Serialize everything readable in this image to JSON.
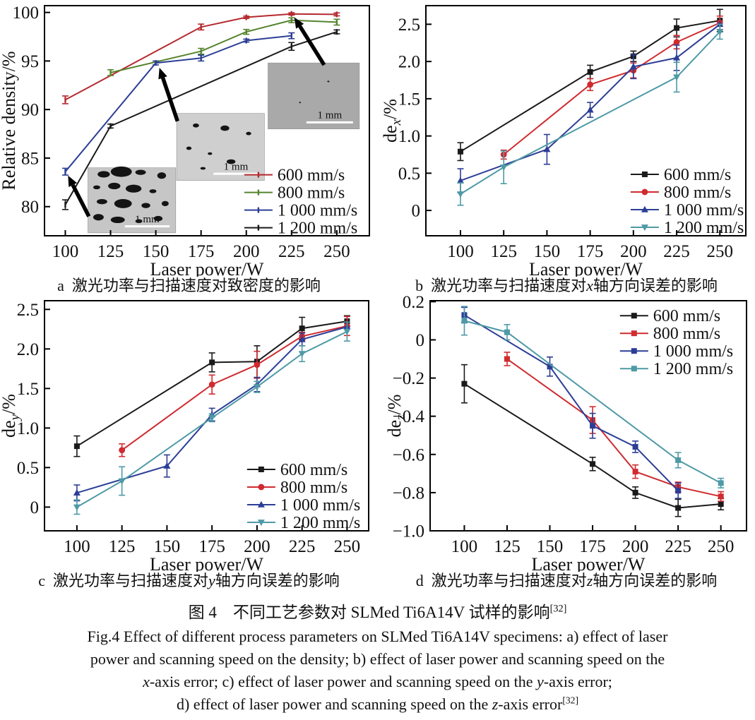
{
  "figure_caption": {
    "cn": [
      {
        "t": "图 4　不同工艺参数对 SLMed Ti6A14V 试样的影响"
      },
      {
        "t": "[32]",
        "sup": true
      }
    ],
    "en_lines": [
      [
        {
          "t": "Fig.4 Effect of different process parameters on SLMed Ti6A14V specimens: a) effect of laser"
        }
      ],
      [
        {
          "t": "power and scanning speed on the density; b) effect of laser power and scanning speed on the"
        }
      ],
      [
        {
          "t": "x",
          "i": true
        },
        {
          "t": "-axis error; c) effect of laser power and scanning speed on the "
        },
        {
          "t": "y",
          "i": true
        },
        {
          "t": "-axis error;"
        }
      ],
      [
        {
          "t": "d) effect of laser power and scanning speed on the "
        },
        {
          "t": "z",
          "i": true
        },
        {
          "t": "-axis error"
        },
        {
          "t": "[32]",
          "sup": true
        }
      ]
    ]
  },
  "chart_data": [
    {
      "id": "a",
      "type": "line",
      "subcaption": [
        {
          "t": "a  激光功率与扫描速度对致密度的影响"
        }
      ],
      "xlabel": "Laser power/W",
      "ylabel": {
        "pre": "Relative density/%",
        "sub": "",
        "post": ""
      },
      "xlim": [
        88.5,
        268
      ],
      "xticks": [
        100,
        125,
        150,
        175,
        200,
        225,
        250
      ],
      "ylim": [
        77.0,
        100.7
      ],
      "yticks": [
        {
          "v": 80,
          "l": "80"
        },
        {
          "v": 85,
          "l": "85"
        },
        {
          "v": 90,
          "l": "90"
        },
        {
          "v": 95,
          "l": "95"
        },
        {
          "v": 100,
          "l": "100"
        }
      ],
      "grid": false,
      "legend": {
        "fx": 0.615,
        "fy": 0.735
      },
      "series": [
        {
          "name": "600 mm/s",
          "color": "#b5292e",
          "marker": "none",
          "points": [
            [
              100,
              91.0,
              0.4
            ],
            [
              175,
              98.5,
              0.3
            ],
            [
              200,
              99.5,
              0.12
            ],
            [
              225,
              99.85,
              0.12
            ],
            [
              250,
              99.8,
              0.15
            ]
          ]
        },
        {
          "name": "800 mm/s",
          "color": "#56842e",
          "marker": "none",
          "points": [
            [
              125,
              93.8,
              0.3
            ],
            [
              175,
              96.0,
              0.3
            ],
            [
              200,
              98.0,
              0.25
            ],
            [
              225,
              99.2,
              0.25
            ],
            [
              250,
              99.0,
              0.3
            ]
          ]
        },
        {
          "name": "1 000 mm/s",
          "color": "#2c3e96",
          "marker": "none",
          "points": [
            [
              100,
              83.6,
              0.35
            ],
            [
              150,
              94.8,
              0.2
            ],
            [
              175,
              95.3,
              0.3
            ],
            [
              200,
              97.1,
              0.15
            ],
            [
              225,
              97.6,
              0.3
            ]
          ]
        },
        {
          "name": "1 200 mm/s",
          "color": "#1a1a1a",
          "marker": "none",
          "points": [
            [
              100,
              80.2,
              0.5
            ],
            [
              125,
              88.3,
              0.2
            ],
            [
              225,
              96.5,
              0.4
            ],
            [
              250,
              98.0,
              0.2
            ]
          ]
        }
      ],
      "insets": [
        {
          "x": [
            112.5,
            161
          ],
          "y": [
            77.3,
            84.0
          ],
          "fill": "#c6c6c6",
          "label": "1 mm",
          "label_color": "#3a3a3a",
          "bar_color": "#ffffff",
          "pores": [
            [
              0.18,
              0.1,
              0.07,
              0.05
            ],
            [
              0.38,
              0.06,
              0.12,
              0.08
            ],
            [
              0.6,
              0.07,
              0.06,
              0.04
            ],
            [
              0.84,
              0.12,
              0.05,
              0.05
            ],
            [
              0.1,
              0.3,
              0.04,
              0.03
            ],
            [
              0.3,
              0.28,
              0.07,
              0.05
            ],
            [
              0.52,
              0.32,
              0.09,
              0.06
            ],
            [
              0.74,
              0.36,
              0.04,
              0.03
            ],
            [
              0.16,
              0.52,
              0.06,
              0.04
            ],
            [
              0.4,
              0.55,
              0.1,
              0.07
            ],
            [
              0.66,
              0.58,
              0.05,
              0.04
            ],
            [
              0.88,
              0.55,
              0.04,
              0.04
            ],
            [
              0.12,
              0.76,
              0.06,
              0.05
            ],
            [
              0.34,
              0.8,
              0.08,
              0.05
            ],
            [
              0.58,
              0.82,
              0.04,
              0.03
            ],
            [
              0.8,
              0.78,
              0.05,
              0.04
            ]
          ]
        },
        {
          "x": [
            161.5,
            210
          ],
          "y": [
            82.7,
            89.6
          ],
          "fill": "#cfcfcf",
          "label": "1 mm",
          "label_color": "#ffffff",
          "bar_color": "#ffffff",
          "pores": [
            [
              0.22,
              0.18,
              0.035,
              0.03
            ],
            [
              0.55,
              0.22,
              0.05,
              0.04
            ],
            [
              0.82,
              0.3,
              0.03,
              0.025
            ],
            [
              0.14,
              0.52,
              0.03,
              0.025
            ],
            [
              0.38,
              0.6,
              0.025,
              0.02
            ],
            [
              0.62,
              0.72,
              0.05,
              0.035
            ],
            [
              0.3,
              0.82,
              0.03,
              0.02
            ]
          ]
        },
        {
          "x": [
            212,
            262.5
          ],
          "y": [
            88.0,
            94.8
          ],
          "fill": "#a9a9a9",
          "label": "1 mm",
          "label_color": "#ffffff",
          "bar_color": "#ffffff",
          "pores": [
            [
              0.66,
              0.28,
              0.012,
              0.01
            ],
            [
              0.35,
              0.6,
              0.01,
              0.008
            ]
          ]
        }
      ],
      "arrows": [
        {
          "from": [
            113,
            79.0
          ],
          "to": [
            101.5,
            83.2
          ]
        },
        {
          "from": [
            162,
            88.8
          ],
          "to": [
            152,
            94.3
          ]
        },
        {
          "from": [
            243,
            94.6
          ],
          "to": [
            226.5,
            99.5
          ]
        }
      ]
    },
    {
      "id": "b",
      "type": "line",
      "subcaption": [
        {
          "t": "b  激光功率与扫描速度对"
        },
        {
          "t": "x",
          "i": true
        },
        {
          "t": "轴方向误差的影响"
        }
      ],
      "xlabel": "Laser power/W",
      "ylabel": {
        "pre": "de",
        "sub": "x",
        "post": "/%"
      },
      "xlim": [
        80,
        265
      ],
      "xticks": [
        100,
        125,
        150,
        175,
        200,
        225,
        250
      ],
      "ylim": [
        -0.34,
        2.75
      ],
      "yticks": [
        {
          "v": 0,
          "l": "0"
        },
        {
          "v": 0.5,
          "l": "0.5"
        },
        {
          "v": 1.0,
          "l": "1.0"
        },
        {
          "v": 1.5,
          "l": "1.5"
        },
        {
          "v": 2.0,
          "l": "2.0"
        },
        {
          "v": 2.5,
          "l": "2.5"
        }
      ],
      "grid": false,
      "legend": {
        "fx": 0.64,
        "fy": 0.733
      },
      "series": [
        {
          "name": "600 mm/s",
          "color": "#1a1a1a",
          "marker": "square",
          "points": [
            [
              100,
              0.79,
              0.12
            ],
            [
              175,
              1.86,
              0.09
            ],
            [
              200,
              2.07,
              0.07
            ],
            [
              225,
              2.45,
              0.12
            ],
            [
              250,
              2.55,
              0.15
            ]
          ]
        },
        {
          "name": "800 mm/s",
          "color": "#cf2b30",
          "marker": "circle",
          "points": [
            [
              125,
              0.75,
              0.06
            ],
            [
              175,
              1.69,
              0.08
            ],
            [
              200,
              1.88,
              0.1
            ],
            [
              225,
              2.26,
              0.09
            ],
            [
              250,
              2.52,
              0.09
            ]
          ]
        },
        {
          "name": "1 000 mm/s",
          "color": "#2c3e96",
          "marker": "triangle-up",
          "points": [
            [
              100,
              0.4,
              0.16
            ],
            [
              150,
              0.82,
              0.2
            ],
            [
              175,
              1.35,
              0.1
            ],
            [
              200,
              1.93,
              0.16
            ],
            [
              225,
              2.05,
              0.17
            ],
            [
              250,
              2.5,
              0
            ]
          ]
        },
        {
          "name": "1 200 mm/s",
          "color": "#4e9aa6",
          "marker": "triangle-down",
          "points": [
            [
              100,
              0.22,
              0.15
            ],
            [
              125,
              0.58,
              0.22
            ],
            [
              225,
              1.79,
              0.2
            ],
            [
              250,
              2.4,
              0.1
            ]
          ]
        }
      ]
    },
    {
      "id": "c",
      "type": "line",
      "subcaption": [
        {
          "t": "c  激光功率与扫描速度对"
        },
        {
          "t": "y",
          "i": true
        },
        {
          "t": "轴方向误差的影响"
        }
      ],
      "xlabel": "Laser power/W",
      "ylabel": {
        "pre": "de",
        "sub": "y",
        "post": "/%"
      },
      "xlim": [
        82,
        262
      ],
      "xticks": [
        100,
        125,
        150,
        175,
        200,
        225,
        250
      ],
      "ylim": [
        -0.3,
        2.61
      ],
      "yticks": [
        {
          "v": 0,
          "l": "0"
        },
        {
          "v": 0.5,
          "l": "0.5"
        },
        {
          "v": 1.0,
          "l": "1.0"
        },
        {
          "v": 1.5,
          "l": "1.5"
        },
        {
          "v": 2.0,
          "l": "2.0"
        },
        {
          "v": 2.5,
          "l": "2.5"
        }
      ],
      "grid": false,
      "legend": {
        "fx": 0.625,
        "fy": 0.733
      },
      "series": [
        {
          "name": "600 mm/s",
          "color": "#1a1a1a",
          "marker": "square",
          "points": [
            [
              100,
              0.77,
              0.13
            ],
            [
              175,
              1.83,
              0.12
            ],
            [
              200,
              1.84,
              0.2
            ],
            [
              225,
              2.26,
              0.14
            ],
            [
              250,
              2.35,
              0.07
            ]
          ]
        },
        {
          "name": "800 mm/s",
          "color": "#cf2b30",
          "marker": "circle",
          "points": [
            [
              125,
              0.72,
              0.08
            ],
            [
              175,
              1.55,
              0.12
            ],
            [
              200,
              1.8,
              0.17
            ],
            [
              225,
              2.16,
              0.05
            ],
            [
              250,
              2.29,
              0.12
            ]
          ]
        },
        {
          "name": "1 000 mm/s",
          "color": "#2c3e96",
          "marker": "triangle-up",
          "points": [
            [
              100,
              0.18,
              0.1
            ],
            [
              150,
              0.52,
              0.14
            ],
            [
              175,
              1.17,
              0.08
            ],
            [
              200,
              1.55,
              0.09
            ],
            [
              225,
              2.12,
              0.08
            ],
            [
              250,
              2.28,
              0
            ]
          ]
        },
        {
          "name": "1 200 mm/s",
          "color": "#4e9aa6",
          "marker": "triangle-down",
          "points": [
            [
              100,
              0.0,
              0.09
            ],
            [
              125,
              0.33,
              0.18
            ],
            [
              175,
              1.13,
              0.05
            ],
            [
              200,
              1.52,
              0.07
            ],
            [
              225,
              1.94,
              0.1
            ],
            [
              250,
              2.22,
              0.12
            ]
          ]
        }
      ]
    },
    {
      "id": "d",
      "type": "line",
      "subcaption": [
        {
          "t": "d  激光功率与扫描速度对"
        },
        {
          "t": "z",
          "i": true
        },
        {
          "t": "轴方向误差的影响"
        }
      ],
      "xlabel": "Laser power/W",
      "ylabel": {
        "pre": "de",
        "sub": "z",
        "post": "/%"
      },
      "xlim": [
        80,
        265
      ],
      "xticks": [
        100,
        125,
        150,
        175,
        200,
        225,
        250
      ],
      "ylim": [
        -1.0,
        0.205
      ],
      "yticks": [
        {
          "v": 0.2,
          "l": "0.2"
        },
        {
          "v": 0,
          "l": "0"
        },
        {
          "v": -0.2,
          "l": "−0.2"
        },
        {
          "v": -0.4,
          "l": "−0.4"
        },
        {
          "v": -0.6,
          "l": "−0.6"
        },
        {
          "v": -0.8,
          "l": "−0.8"
        },
        {
          "v": -1.0,
          "l": "−1.0"
        }
      ],
      "grid": false,
      "legend": {
        "fx": 0.6,
        "fy": 0.065
      },
      "series": [
        {
          "name": "600 mm/s",
          "color": "#1a1a1a",
          "marker": "square",
          "points": [
            [
              100,
              -0.23,
              0.1
            ],
            [
              175,
              -0.65,
              0.035
            ],
            [
              200,
              -0.8,
              0.03
            ],
            [
              225,
              -0.88,
              0.045
            ],
            [
              250,
              -0.86,
              0.03
            ]
          ]
        },
        {
          "name": "800 mm/s",
          "color": "#cf2b30",
          "marker": "square",
          "points": [
            [
              125,
              -0.1,
              0.035
            ],
            [
              175,
              -0.42,
              0.07
            ],
            [
              200,
              -0.69,
              0.035
            ],
            [
              225,
              -0.77,
              0.025
            ],
            [
              250,
              -0.82,
              0.025
            ]
          ]
        },
        {
          "name": "1 000 mm/s",
          "color": "#2c3e96",
          "marker": "square",
          "points": [
            [
              100,
              0.13,
              0.04
            ],
            [
              150,
              -0.14,
              0.05
            ],
            [
              175,
              -0.45,
              0.065
            ],
            [
              200,
              -0.56,
              0.03
            ],
            [
              225,
              -0.79,
              0.04
            ]
          ]
        },
        {
          "name": "1 200 mm/s",
          "color": "#4e9aa6",
          "marker": "square",
          "points": [
            [
              100,
              0.1,
              0.075
            ],
            [
              125,
              0.04,
              0.04
            ],
            [
              225,
              -0.63,
              0.04
            ],
            [
              250,
              -0.75,
              0.025
            ]
          ]
        }
      ]
    }
  ]
}
